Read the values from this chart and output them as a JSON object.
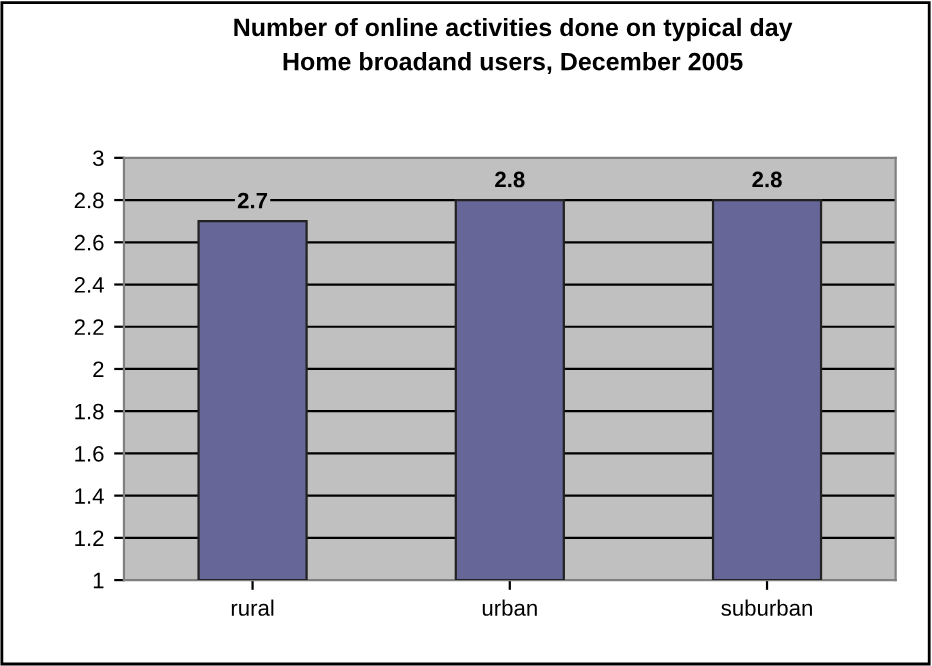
{
  "chart_data": {
    "type": "bar",
    "title": "Number of online activities done on typical day\nHome broadand users, December 2005",
    "categories": [
      "rural",
      "urban",
      "suburban"
    ],
    "values": [
      2.7,
      2.8,
      2.8
    ],
    "color": "#666699",
    "ylim": [
      1,
      3
    ],
    "yticks": [
      1,
      1.2,
      1.4,
      1.6,
      1.8,
      2,
      2.2,
      2.4,
      2.6,
      2.8,
      3
    ],
    "grid": "y",
    "data_labels": true
  }
}
